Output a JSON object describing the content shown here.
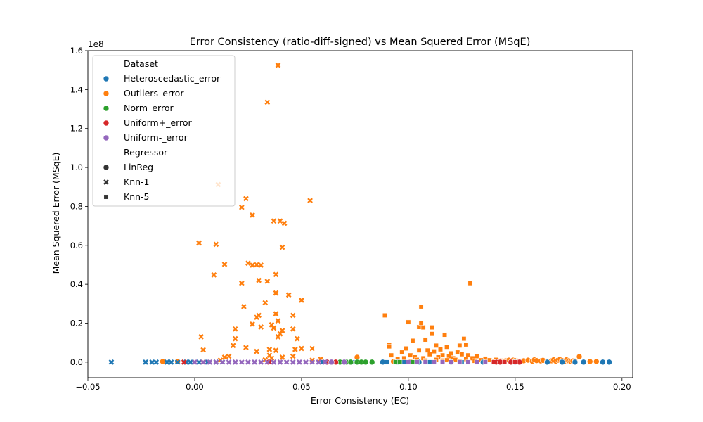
{
  "chart_data": {
    "type": "scatter",
    "title": "Error Consistency (ratio-diff-signed) vs Mean Squered Error (MSqE)",
    "xlabel": "Error Consistency (EC)",
    "ylabel": "Mean Squered Error (MSqE)",
    "y_offset_text": "1e8",
    "xlim": [
      -0.05,
      0.205
    ],
    "ylim": [
      -0.08,
      1.6
    ],
    "xticks": [
      -0.05,
      0.0,
      0.05,
      0.1,
      0.15,
      0.2
    ],
    "xtick_labels": [
      "−0.05",
      "0.00",
      "0.05",
      "0.10",
      "0.15",
      "0.20"
    ],
    "yticks": [
      0.0,
      0.2,
      0.4,
      0.6,
      0.8,
      1.0,
      1.2,
      1.4,
      1.6
    ],
    "ytick_labels": [
      "0.0",
      "0.2",
      "0.4",
      "0.6",
      "0.8",
      "1.0",
      "1.2",
      "1.4",
      "1.6"
    ],
    "grid": false,
    "legend_placement": "upper-left",
    "legend": {
      "hue_title": "Dataset",
      "hue": [
        {
          "name": "Heteroscedastic_error",
          "color": "#1f77b4"
        },
        {
          "name": "Outliers_error",
          "color": "#ff7f0e"
        },
        {
          "name": "Norm_error",
          "color": "#2ca02c"
        },
        {
          "name": "Uniform+_error",
          "color": "#d62728"
        },
        {
          "name": "Uniform-_error",
          "color": "#9467bd"
        }
      ],
      "style_title": "Regressor",
      "style": [
        {
          "name": "LinReg",
          "marker": "circle"
        },
        {
          "name": "Knn-1",
          "marker": "x"
        },
        {
          "name": "Knn-5",
          "marker": "square"
        }
      ]
    },
    "series": [
      {
        "dataset": "Outliers_error",
        "regressor": "Knn-1",
        "points": [
          [
            0.039,
            1.525
          ],
          [
            0.034,
            1.335
          ],
          [
            0.011,
            0.912
          ],
          [
            0.024,
            0.84
          ],
          [
            0.022,
            0.795
          ],
          [
            0.054,
            0.83
          ],
          [
            0.027,
            0.755
          ],
          [
            0.037,
            0.725
          ],
          [
            0.04,
            0.725
          ],
          [
            0.042,
            0.713
          ],
          [
            0.002,
            0.612
          ],
          [
            0.01,
            0.605
          ],
          [
            0.041,
            0.59
          ],
          [
            0.014,
            0.502
          ],
          [
            0.025,
            0.508
          ],
          [
            0.027,
            0.498
          ],
          [
            0.029,
            0.5
          ],
          [
            0.031,
            0.498
          ],
          [
            0.009,
            0.448
          ],
          [
            0.038,
            0.45
          ],
          [
            0.03,
            0.42
          ],
          [
            0.034,
            0.415
          ],
          [
            0.022,
            0.405
          ],
          [
            0.044,
            0.345
          ],
          [
            0.038,
            0.355
          ],
          [
            0.05,
            0.318
          ],
          [
            0.033,
            0.305
          ],
          [
            0.023,
            0.285
          ],
          [
            0.038,
            0.248
          ],
          [
            0.046,
            0.24
          ],
          [
            0.029,
            0.23
          ],
          [
            0.03,
            0.24
          ],
          [
            0.039,
            0.212
          ],
          [
            0.027,
            0.195
          ],
          [
            0.036,
            0.192
          ],
          [
            0.031,
            0.18
          ],
          [
            0.037,
            0.175
          ],
          [
            0.041,
            0.162
          ],
          [
            0.046,
            0.17
          ],
          [
            0.019,
            0.17
          ],
          [
            0.04,
            0.145
          ],
          [
            0.003,
            0.13
          ],
          [
            0.019,
            0.12
          ],
          [
            0.039,
            0.13
          ],
          [
            0.048,
            0.12
          ],
          [
            0.018,
            0.085
          ],
          [
            0.024,
            0.075
          ],
          [
            0.035,
            0.065
          ],
          [
            0.038,
            0.06
          ],
          [
            0.004,
            0.063
          ],
          [
            0.029,
            0.055
          ],
          [
            0.047,
            0.065
          ],
          [
            0.05,
            0.07
          ],
          [
            0.055,
            0.07
          ],
          [
            0.016,
            0.03
          ],
          [
            0.014,
            0.025
          ],
          [
            0.035,
            0.035
          ],
          [
            0.036,
            0.02
          ],
          [
            0.046,
            0.03
          ],
          [
            0.041,
            0.025
          ],
          [
            0.055,
            0.01
          ],
          [
            0.059,
            0.015
          ],
          [
            0.033,
            0.012
          ],
          [
            0.012,
            0.01
          ]
        ]
      },
      {
        "dataset": "Outliers_error",
        "regressor": "Knn-5",
        "points": [
          [
            0.129,
            0.405
          ],
          [
            0.106,
            0.285
          ],
          [
            0.089,
            0.24
          ],
          [
            0.1,
            0.205
          ],
          [
            0.105,
            0.18
          ],
          [
            0.107,
            0.178
          ],
          [
            0.106,
            0.2
          ],
          [
            0.111,
            0.178
          ],
          [
            0.111,
            0.145
          ],
          [
            0.117,
            0.14
          ],
          [
            0.091,
            0.09
          ],
          [
            0.091,
            0.08
          ],
          [
            0.102,
            0.11
          ],
          [
            0.108,
            0.115
          ],
          [
            0.113,
            0.085
          ],
          [
            0.118,
            0.078
          ],
          [
            0.126,
            0.12
          ],
          [
            0.127,
            0.09
          ],
          [
            0.124,
            0.085
          ],
          [
            0.099,
            0.07
          ],
          [
            0.105,
            0.06
          ],
          [
            0.109,
            0.06
          ],
          [
            0.112,
            0.055
          ],
          [
            0.115,
            0.065
          ],
          [
            0.12,
            0.045
          ],
          [
            0.123,
            0.05
          ],
          [
            0.097,
            0.05
          ],
          [
            0.092,
            0.035
          ],
          [
            0.101,
            0.035
          ],
          [
            0.11,
            0.04
          ],
          [
            0.116,
            0.035
          ],
          [
            0.119,
            0.03
          ],
          [
            0.125,
            0.04
          ],
          [
            0.128,
            0.035
          ],
          [
            0.132,
            0.03
          ],
          [
            0.098,
            0.02
          ],
          [
            0.103,
            0.025
          ],
          [
            0.107,
            0.02
          ],
          [
            0.114,
            0.025
          ],
          [
            0.121,
            0.02
          ],
          [
            0.13,
            0.02
          ],
          [
            0.136,
            0.018
          ],
          [
            0.141,
            0.012
          ],
          [
            0.095,
            0.015
          ],
          [
            0.104,
            0.012
          ],
          [
            0.113,
            0.012
          ],
          [
            0.118,
            0.01
          ],
          [
            0.122,
            0.012
          ],
          [
            0.127,
            0.015
          ],
          [
            0.134,
            0.01
          ],
          [
            0.138,
            0.01
          ],
          [
            0.143,
            0.008
          ],
          [
            0.146,
            0.01
          ],
          [
            0.108,
            0.008
          ],
          [
            0.116,
            0.008
          ],
          [
            0.124,
            0.005
          ],
          [
            0.131,
            0.006
          ]
        ]
      },
      {
        "dataset": "Outliers_error",
        "regressor": "LinReg",
        "points": [
          [
            -0.015,
            0.003
          ],
          [
            -0.008,
            0.003
          ],
          [
            0.076,
            0.025
          ],
          [
            0.093,
            0.003
          ],
          [
            0.101,
            0.003
          ],
          [
            0.14,
            0.003
          ],
          [
            0.143,
            0.005
          ],
          [
            0.145,
            0.005
          ],
          [
            0.147,
            0.01
          ],
          [
            0.149,
            0.01
          ],
          [
            0.15,
            0.008
          ],
          [
            0.151,
            0.005
          ],
          [
            0.153,
            0.004
          ],
          [
            0.154,
            0.007
          ],
          [
            0.156,
            0.01
          ],
          [
            0.158,
            0.005
          ],
          [
            0.159,
            0.012
          ],
          [
            0.16,
            0.008
          ],
          [
            0.162,
            0.006
          ],
          [
            0.163,
            0.009
          ],
          [
            0.165,
            0.004
          ],
          [
            0.167,
            0.007
          ],
          [
            0.168,
            0.012
          ],
          [
            0.169,
            0.005
          ],
          [
            0.17,
            0.01
          ],
          [
            0.171,
            0.015
          ],
          [
            0.172,
            0.008
          ],
          [
            0.173,
            0.004
          ],
          [
            0.174,
            0.012
          ],
          [
            0.175,
            0.007
          ],
          [
            0.176,
            0.003
          ],
          [
            0.177,
            0.006
          ],
          [
            0.178,
            0.005
          ],
          [
            0.18,
            0.028
          ],
          [
            0.185,
            0.003
          ],
          [
            0.188,
            0.003
          ]
        ]
      },
      {
        "dataset": "Heteroscedastic_error",
        "regressor": "Knn-1",
        "points": [
          [
            -0.039,
            0.0
          ],
          [
            -0.023,
            0.0
          ],
          [
            -0.02,
            0.0
          ],
          [
            -0.018,
            0.0
          ],
          [
            -0.013,
            0.0
          ],
          [
            -0.011,
            0.0
          ],
          [
            -0.008,
            0.0
          ],
          [
            -0.004,
            0.0
          ],
          [
            -0.002,
            0.0
          ],
          [
            0.002,
            0.0
          ],
          [
            0.006,
            0.0
          ],
          [
            0.01,
            0.0
          ],
          [
            0.013,
            0.0
          ]
        ]
      },
      {
        "dataset": "Heteroscedastic_error",
        "regressor": "LinReg",
        "points": [
          [
            0.08,
            0.0
          ],
          [
            0.088,
            0.0
          ],
          [
            0.095,
            0.0
          ],
          [
            0.105,
            0.0
          ],
          [
            0.12,
            0.0
          ],
          [
            0.135,
            0.0
          ],
          [
            0.15,
            0.0
          ],
          [
            0.165,
            0.0
          ],
          [
            0.172,
            0.0
          ],
          [
            0.178,
            0.0
          ],
          [
            0.182,
            0.0
          ],
          [
            0.191,
            0.0
          ],
          [
            0.194,
            0.0
          ]
        ]
      },
      {
        "dataset": "Heteroscedastic_error",
        "regressor": "Knn-5",
        "points": [
          [
            0.06,
            0.0
          ],
          [
            0.075,
            0.0
          ],
          [
            0.09,
            0.0
          ],
          [
            0.098,
            0.0
          ],
          [
            0.11,
            0.0
          ],
          [
            0.125,
            0.0
          ],
          [
            0.14,
            0.0
          ]
        ]
      },
      {
        "dataset": "Norm_error",
        "regressor": "LinReg",
        "points": [
          [
            0.068,
            0.0
          ],
          [
            0.071,
            0.0
          ],
          [
            0.073,
            0.0
          ],
          [
            0.076,
            0.0
          ],
          [
            0.078,
            0.0
          ],
          [
            0.08,
            0.0
          ],
          [
            0.083,
            0.0
          ]
        ]
      },
      {
        "dataset": "Norm_error",
        "regressor": "Knn-5",
        "points": [
          [
            0.094,
            0.0
          ],
          [
            0.096,
            0.0
          ],
          [
            0.102,
            0.0
          ]
        ]
      },
      {
        "dataset": "Uniform+_error",
        "regressor": "LinReg",
        "points": [
          [
            0.062,
            0.0
          ],
          [
            0.066,
            0.0
          ],
          [
            0.141,
            0.0
          ],
          [
            0.143,
            0.0
          ],
          [
            0.148,
            0.0
          ],
          [
            0.152,
            0.0
          ]
        ]
      },
      {
        "dataset": "Uniform+_error",
        "regressor": "Knn-1",
        "points": [
          [
            -0.005,
            0.0
          ],
          [
            0.004,
            0.0
          ],
          [
            0.035,
            0.0
          ]
        ]
      },
      {
        "dataset": "Uniform+_error",
        "regressor": "Knn-5",
        "points": [
          [
            0.14,
            0.0
          ],
          [
            0.145,
            0.0
          ],
          [
            0.15,
            0.0
          ]
        ]
      },
      {
        "dataset": "Uniform-_error",
        "regressor": "Knn-1",
        "points": [
          [
            0.0,
            0.0
          ],
          [
            0.004,
            0.0
          ],
          [
            0.007,
            0.0
          ],
          [
            0.01,
            0.0
          ],
          [
            0.013,
            0.0
          ],
          [
            0.016,
            0.0
          ],
          [
            0.019,
            0.0
          ],
          [
            0.022,
            0.0
          ],
          [
            0.025,
            0.0
          ],
          [
            0.028,
            0.0
          ],
          [
            0.031,
            0.0
          ],
          [
            0.034,
            0.0
          ],
          [
            0.037,
            0.0
          ],
          [
            0.04,
            0.0
          ],
          [
            0.043,
            0.0
          ],
          [
            0.046,
            0.0
          ],
          [
            0.049,
            0.0
          ],
          [
            0.052,
            0.0
          ],
          [
            0.055,
            0.0
          ],
          [
            0.058,
            0.0
          ],
          [
            0.061,
            0.0
          ]
        ]
      },
      {
        "dataset": "Uniform-_error",
        "regressor": "Knn-5",
        "points": [
          [
            0.1,
            0.0
          ],
          [
            0.104,
            0.0
          ],
          [
            0.108,
            0.0
          ],
          [
            0.112,
            0.0
          ],
          [
            0.116,
            0.0
          ],
          [
            0.12,
            0.0
          ],
          [
            0.124,
            0.0
          ],
          [
            0.128,
            0.0
          ],
          [
            0.132,
            0.0
          ],
          [
            0.136,
            0.0
          ]
        ]
      },
      {
        "dataset": "Uniform-_error",
        "regressor": "LinReg",
        "points": [
          [
            0.064,
            0.0
          ],
          [
            0.07,
            0.0
          ]
        ]
      }
    ]
  }
}
